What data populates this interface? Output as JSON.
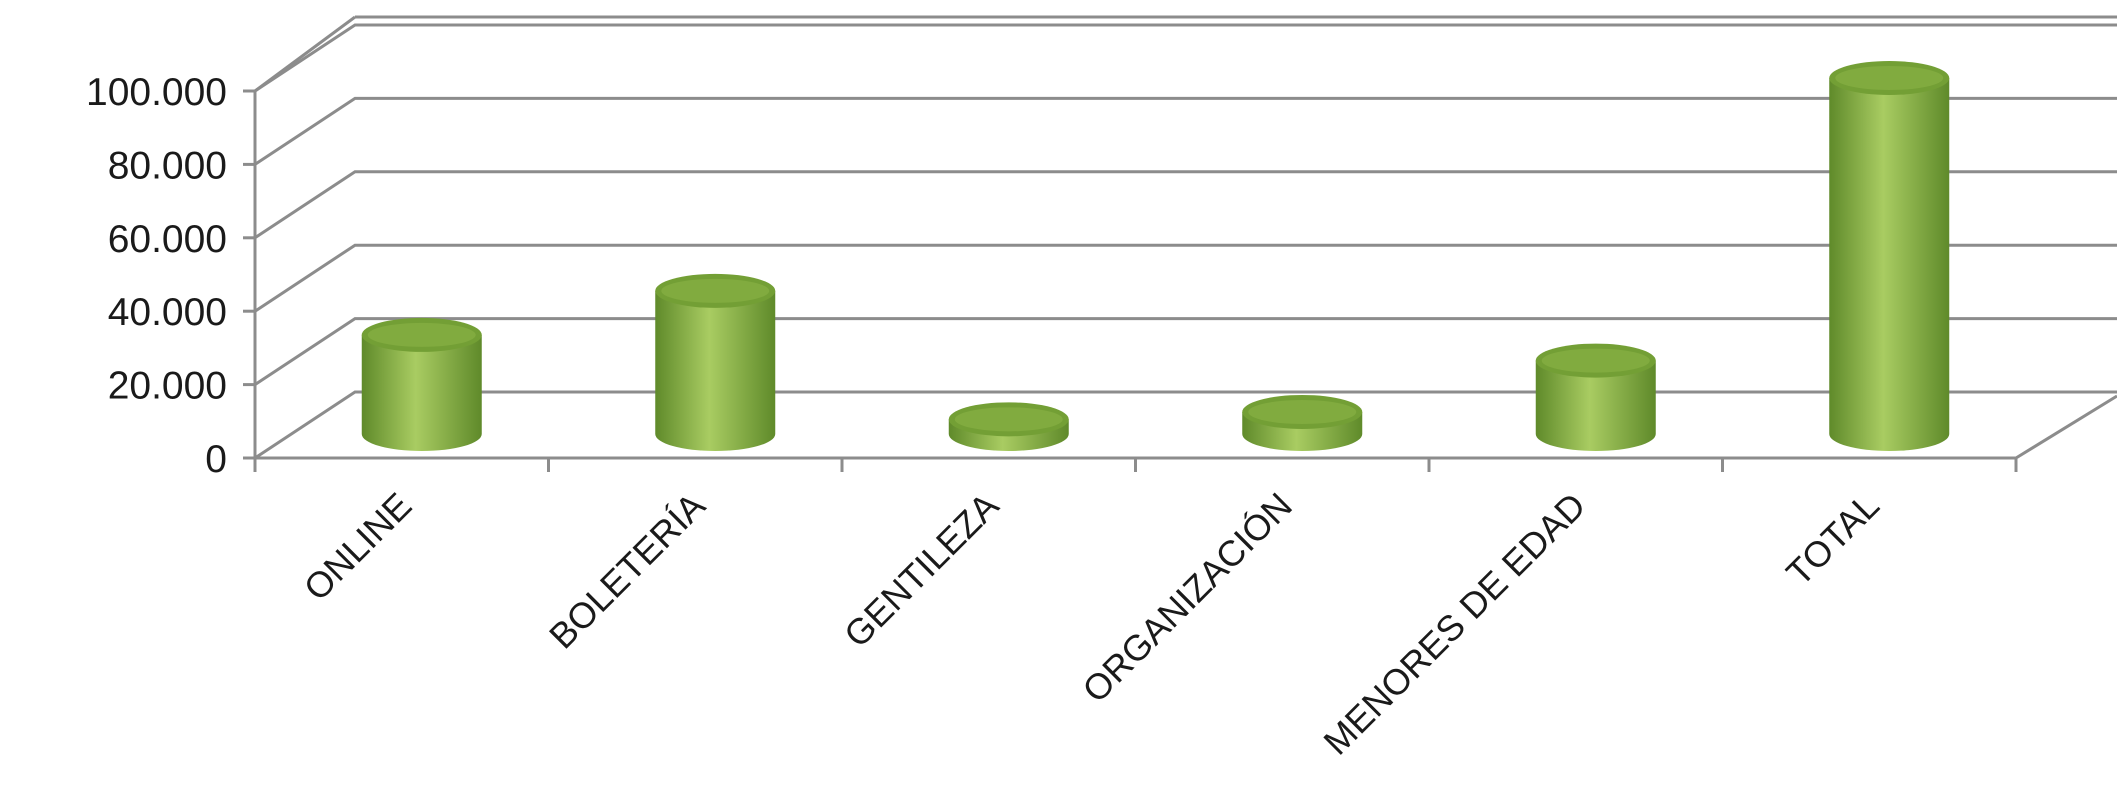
{
  "chart_data": {
    "type": "bar",
    "style": "3d-cylinder",
    "categories": [
      "ONLINE",
      "BOLETERÍA",
      "GENTILEZA",
      "ORGANIZACIÓN",
      "MENORES DE EDAD",
      "TOTAL"
    ],
    "values": [
      27000,
      39000,
      4000,
      6000,
      20000,
      97000
    ],
    "ylim": [
      0,
      100000
    ],
    "yticks": [
      0,
      20000,
      40000,
      60000,
      80000,
      100000
    ],
    "ytick_labels": [
      "0",
      "20.000",
      "40.000",
      "60.000",
      "80.000",
      "100.000"
    ],
    "grid": true,
    "legend": "none",
    "colors": {
      "bar_light": "#a9cc62",
      "bar_mid": "#8db547",
      "bar_dark": "#5f8a2a",
      "bar_top": "#739f35",
      "grid": "#8c8c8c",
      "axis": "#8c8c8c"
    }
  }
}
